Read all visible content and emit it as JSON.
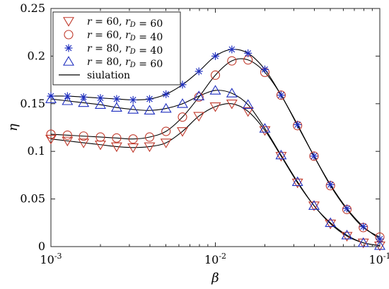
{
  "chart_data": {
    "type": "line",
    "title": "",
    "xlabel": "β",
    "ylabel": "η",
    "xscale": "log",
    "xlim": [
      0.001,
      0.1
    ],
    "ylim": [
      0,
      0.25
    ],
    "grid": false,
    "legend_position": "top-left",
    "x_ticks": [
      {
        "value": 0.001,
        "base": "10",
        "exp": "-3"
      },
      {
        "value": 0.01,
        "base": "10",
        "exp": "-2"
      },
      {
        "value": 0.1,
        "base": "10",
        "exp": "-1"
      }
    ],
    "y_ticks": [
      {
        "value": 0,
        "label": "0"
      },
      {
        "value": 0.05,
        "label": "0.05"
      },
      {
        "value": 0.1,
        "label": "0.1"
      },
      {
        "value": 0.15,
        "label": "0.15"
      },
      {
        "value": 0.2,
        "label": "0.2"
      },
      {
        "value": 0.25,
        "label": "0.25"
      }
    ],
    "x": [
      0.001,
      0.00126,
      0.00158,
      0.002,
      0.00251,
      0.00316,
      0.00398,
      0.00501,
      0.00631,
      0.00794,
      0.01,
      0.0126,
      0.0158,
      0.02,
      0.0251,
      0.0316,
      0.0398,
      0.0501,
      0.0631,
      0.0794,
      0.1
    ],
    "series": [
      {
        "name": "r = 60, r_D = 60",
        "legend_parts": [
          {
            "t": "r",
            "i": true
          },
          {
            "t": " = 60, ",
            "i": false
          },
          {
            "t": "r",
            "i": true
          },
          {
            "t": "D",
            "i": true,
            "sub": true
          },
          {
            "t": " = 60",
            "i": false
          }
        ],
        "marker": "triangle-down",
        "color": "#c0392b",
        "values": [
          0.113,
          0.111,
          0.109,
          0.107,
          0.105,
          0.104,
          0.105,
          0.109,
          0.121,
          0.137,
          0.147,
          0.15,
          0.142,
          0.122,
          0.095,
          0.067,
          0.043,
          0.024,
          0.011,
          0.004,
          0.001
        ]
      },
      {
        "name": "r = 60, r_D = 40",
        "legend_parts": [
          {
            "t": "r",
            "i": true
          },
          {
            "t": " = 60, ",
            "i": false
          },
          {
            "t": "r",
            "i": true
          },
          {
            "t": "D",
            "i": true,
            "sub": true
          },
          {
            "t": " = 40",
            "i": false
          }
        ],
        "marker": "circle",
        "color": "#c0392b",
        "values": [
          0.118,
          0.117,
          0.116,
          0.115,
          0.114,
          0.113,
          0.115,
          0.121,
          0.136,
          0.157,
          0.18,
          0.195,
          0.196,
          0.183,
          0.159,
          0.127,
          0.095,
          0.064,
          0.039,
          0.02,
          0.01
        ]
      },
      {
        "name": "r = 80, r_D = 40",
        "legend_parts": [
          {
            "t": "r",
            "i": true
          },
          {
            "t": " = 80, ",
            "i": false
          },
          {
            "t": "r",
            "i": true
          },
          {
            "t": "D",
            "i": true,
            "sub": true
          },
          {
            "t": " = 40",
            "i": false
          }
        ],
        "marker": "asterisk",
        "color": "#1f2fbf",
        "values": [
          0.158,
          0.158,
          0.157,
          0.156,
          0.155,
          0.154,
          0.155,
          0.16,
          0.17,
          0.184,
          0.2,
          0.207,
          0.203,
          0.186,
          0.159,
          0.128,
          0.095,
          0.065,
          0.04,
          0.021,
          0.008
        ]
      },
      {
        "name": "r = 80, r_D = 60",
        "legend_parts": [
          {
            "t": "r",
            "i": true
          },
          {
            "t": " = 80, ",
            "i": false
          },
          {
            "t": "r",
            "i": true
          },
          {
            "t": "D",
            "i": true,
            "sub": true
          },
          {
            "t": " = 60",
            "i": false
          }
        ],
        "marker": "triangle-up",
        "color": "#1f2fbf",
        "values": [
          0.155,
          0.153,
          0.151,
          0.149,
          0.146,
          0.144,
          0.143,
          0.145,
          0.15,
          0.158,
          0.164,
          0.161,
          0.149,
          0.124,
          0.096,
          0.068,
          0.043,
          0.025,
          0.012,
          0.004,
          0.001
        ]
      }
    ],
    "line_entry": {
      "name": "siulation",
      "color": "#000000"
    }
  }
}
